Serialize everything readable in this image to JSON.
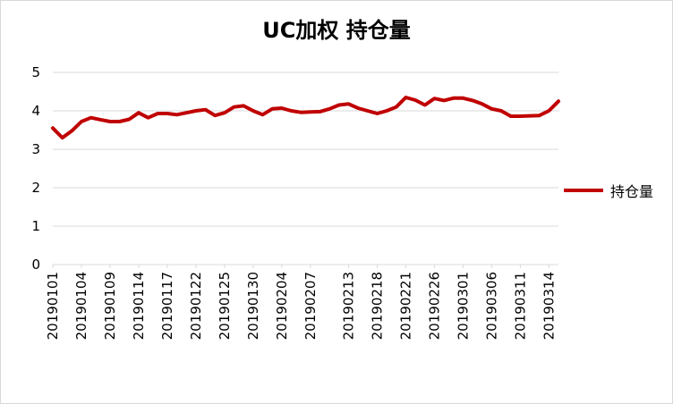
{
  "chart_data": {
    "type": "line",
    "title": "UC加权 持仓量",
    "xlabel": "",
    "ylabel": "",
    "ylim": [
      0,
      5
    ],
    "yticks": [
      "0",
      "1",
      "2",
      "3",
      "4",
      "5"
    ],
    "grid": true,
    "legend_position": "right",
    "x": [
      "20190101",
      "20190102",
      "20190103",
      "20190104",
      "20190107",
      "20190108",
      "20190109",
      "20190110",
      "20190111",
      "20190114",
      "20190115",
      "20190116",
      "20190117",
      "20190118",
      "20190121",
      "20190122",
      "20190123",
      "20190124",
      "20190125",
      "20190128",
      "20190129",
      "20190130",
      "20190131",
      "20190201",
      "20190204",
      "20190205",
      "20190206",
      "20190207",
      "20190208",
      "20190211",
      "20190212",
      "20190213",
      "20190214",
      "20190215",
      "20190218",
      "20190219",
      "20190220",
      "20190221",
      "20190222",
      "20190225",
      "20190226",
      "20190227",
      "20190228",
      "20190301",
      "20190304",
      "20190305",
      "20190306",
      "20190307",
      "20190308",
      "20190311",
      "20190312",
      "20190313",
      "20190314",
      "20190315"
    ],
    "xtick_labels": [
      "20190101",
      "20190104",
      "20190109",
      "20190114",
      "20190117",
      "20190122",
      "20190125",
      "20190130",
      "20190204",
      "20190207",
      "20190213",
      "20190218",
      "20190221",
      "20190226",
      "20190301",
      "20190306",
      "20190311",
      "20190314"
    ],
    "series": [
      {
        "name": "持仓量",
        "color": "#c00000",
        "values": [
          3.55,
          3.3,
          3.48,
          3.72,
          3.82,
          3.77,
          3.72,
          3.72,
          3.78,
          3.95,
          3.82,
          3.93,
          3.93,
          3.9,
          3.95,
          4.0,
          4.03,
          3.88,
          3.95,
          4.1,
          4.13,
          4.0,
          3.9,
          4.05,
          4.07,
          4.0,
          3.96,
          3.97,
          3.98,
          4.05,
          4.15,
          4.18,
          4.07,
          4.0,
          3.93,
          4.0,
          4.1,
          4.35,
          4.28,
          4.15,
          4.32,
          4.27,
          4.33,
          4.33,
          4.27,
          4.18,
          4.05,
          4.0,
          3.86,
          3.86,
          3.87,
          3.88,
          4.0,
          4.25
        ]
      }
    ]
  }
}
